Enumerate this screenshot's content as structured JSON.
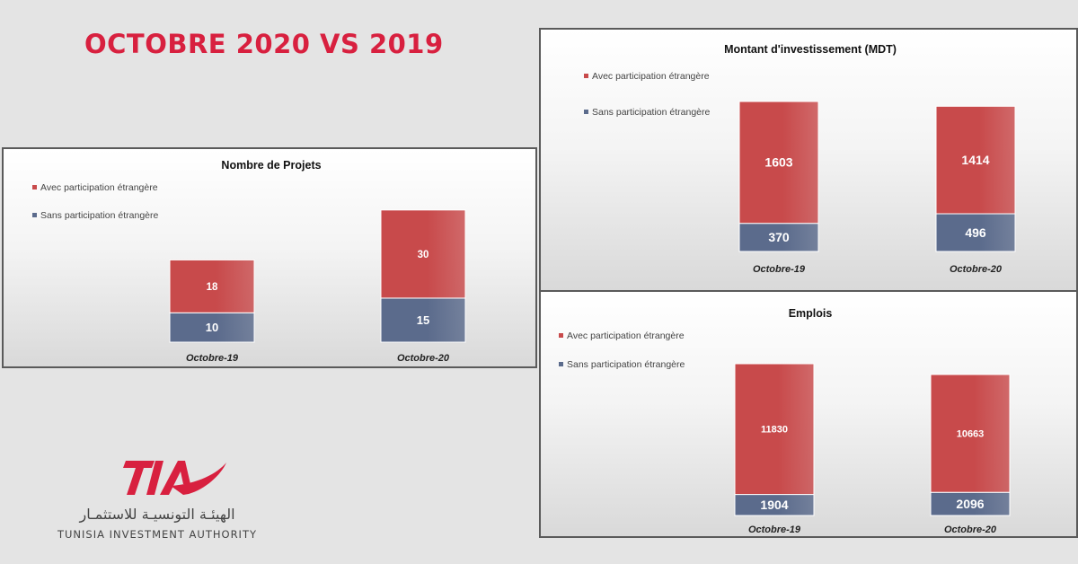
{
  "headline": "OCTOBRE 2020 VS 2019",
  "colors": {
    "headline": "#d8203f",
    "avec": "#c84a4b",
    "sans": "#5b6b8c",
    "brand": "#d8203f"
  },
  "legend": {
    "avec": "Avec participation étrangère",
    "sans": "Sans participation étrangère"
  },
  "logo": {
    "mark": "TIA",
    "arabic": "الهيئـة التونسيـة للاستثمـار",
    "english": "TUNISIA INVESTMENT AUTHORITY"
  },
  "chart_data": [
    {
      "type": "bar",
      "stacked": true,
      "title": "Nombre de Projets",
      "categories": [
        "Octobre-19",
        "Octobre-20"
      ],
      "series": [
        {
          "name": "Sans participation étrangère",
          "values": [
            10,
            15
          ],
          "labels": [
            "10",
            "15"
          ]
        },
        {
          "name": "Avec participation étrangère",
          "values": [
            18,
            30
          ],
          "labels": [
            "18",
            "30"
          ]
        }
      ],
      "legend_position": "top-left",
      "grid": false
    },
    {
      "type": "bar",
      "stacked": true,
      "title": "Montant d'investissement (MDT)",
      "categories": [
        "Octobre-19",
        "Octobre-20"
      ],
      "series": [
        {
          "name": "Sans participation étrangère",
          "values": [
            370,
            496
          ],
          "labels": [
            "370",
            "496"
          ]
        },
        {
          "name": "Avec participation étrangère",
          "values": [
            1603,
            1414
          ],
          "labels": [
            "1603",
            "1414"
          ]
        }
      ],
      "legend_position": "top-left",
      "grid": false
    },
    {
      "type": "bar",
      "stacked": true,
      "title": "Emplois",
      "categories": [
        "Octobre-19",
        "Octobre-20"
      ],
      "series": [
        {
          "name": "Sans participation étrangère",
          "values": [
            1904,
            2096
          ],
          "labels": [
            "1904",
            "2096"
          ]
        },
        {
          "name": "Avec participation étrangère",
          "values": [
            11830,
            10663
          ],
          "labels": [
            "11830",
            "10663"
          ]
        }
      ],
      "legend_position": "top-left",
      "grid": false
    }
  ]
}
